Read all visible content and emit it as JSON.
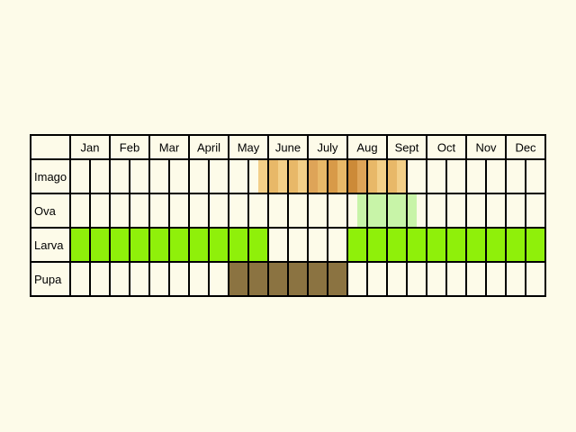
{
  "months": [
    "Jan",
    "Feb",
    "Mar",
    "April",
    "May",
    "June",
    "July",
    "Aug",
    "Sept",
    "Oct",
    "Nov",
    "Dec"
  ],
  "stages": [
    {
      "label": "Imago",
      "segments": [
        {
          "from": 9.5,
          "to": 10,
          "color": "#f3cf88"
        },
        {
          "from": 10,
          "to": 10.5,
          "color": "#e8b868"
        },
        {
          "from": 10.5,
          "to": 11,
          "color": "#f3cf88"
        },
        {
          "from": 11,
          "to": 11.5,
          "color": "#e8b868"
        },
        {
          "from": 11.5,
          "to": 12,
          "color": "#f3cf88"
        },
        {
          "from": 12,
          "to": 12.5,
          "color": "#dea458"
        },
        {
          "from": 12.5,
          "to": 13,
          "color": "#e8b868"
        },
        {
          "from": 13,
          "to": 13.5,
          "color": "#d89a48"
        },
        {
          "from": 13.5,
          "to": 14,
          "color": "#e8b868"
        },
        {
          "from": 14,
          "to": 14.5,
          "color": "#cc8a38"
        },
        {
          "from": 14.5,
          "to": 15,
          "color": "#dea458"
        },
        {
          "from": 15,
          "to": 15.5,
          "color": "#e8b868"
        },
        {
          "from": 15.5,
          "to": 16,
          "color": "#f3cf88"
        },
        {
          "from": 16,
          "to": 16.5,
          "color": "#e8b868"
        },
        {
          "from": 16.5,
          "to": 17,
          "color": "#f3cf88"
        }
      ]
    },
    {
      "label": "Ova",
      "segments": [
        {
          "from": 14.5,
          "to": 17.5,
          "color": "#c8f4a8"
        }
      ]
    },
    {
      "label": "Larva",
      "segments": [
        {
          "from": 0,
          "to": 10,
          "color": "#8ff00a"
        },
        {
          "from": 14,
          "to": 24,
          "color": "#8ff00a"
        }
      ]
    },
    {
      "label": "Pupa",
      "segments": [
        {
          "from": 8,
          "to": 14,
          "color": "#8b7341"
        }
      ]
    }
  ]
}
